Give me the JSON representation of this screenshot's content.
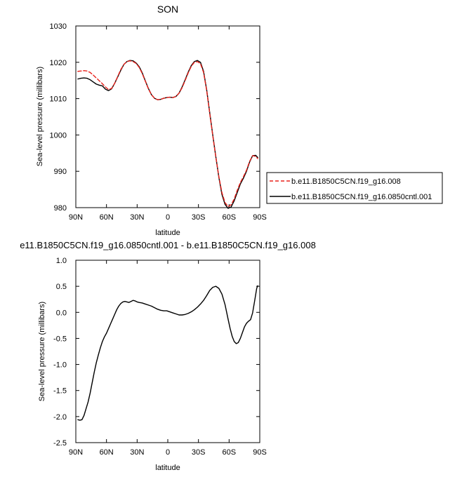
{
  "figure": {
    "top_title": "SON",
    "bottom_title": "e11.B1850C5CN.f19_g16.0850cntl.001 - b.e11.B1850C5CN.f19_g16.008"
  },
  "chart_data": [
    {
      "type": "line",
      "title": "SON",
      "xlabel": "latitude",
      "ylabel": "Sea-level pressure (millibars)",
      "xlim": [
        90,
        -90
      ],
      "ylim": [
        980,
        1030
      ],
      "xticks": [
        90,
        60,
        30,
        0,
        -30,
        -60,
        -90
      ],
      "xtick_labels": [
        "90N",
        "60N",
        "30N",
        "0",
        "30S",
        "60S",
        "90S"
      ],
      "yticks": [
        980,
        990,
        1000,
        1010,
        1020,
        1030
      ],
      "ytick_labels": [
        "980",
        "990",
        "1000",
        "1010",
        "1020",
        "1030"
      ],
      "legend_position": "right",
      "series": [
        {
          "name": "b.e11.B1850C5CN.f19_g16.008",
          "color": "#e8221c",
          "dash": "dashed",
          "x": [
            88,
            85,
            82,
            79,
            76,
            73,
            70,
            67,
            64,
            61,
            58,
            55,
            52,
            49,
            46,
            43,
            40,
            37,
            34,
            31,
            28,
            25,
            22,
            19,
            16,
            13,
            10,
            7,
            4,
            1,
            -2,
            -5,
            -8,
            -11,
            -14,
            -17,
            -20,
            -23,
            -26,
            -29,
            -32,
            -35,
            -38,
            -41,
            -44,
            -47,
            -50,
            -53,
            -56,
            -59,
            -62,
            -65,
            -68,
            -71,
            -74,
            -77,
            -80,
            -83,
            -86,
            -88
          ],
          "y": [
            1017.5,
            1017.6,
            1017.7,
            1017.6,
            1017.2,
            1016.5,
            1015.7,
            1014.9,
            1014.1,
            1013.2,
            1012.5,
            1012.8,
            1014.2,
            1016.1,
            1018.0,
            1019.4,
            1020.2,
            1020.4,
            1020.2,
            1019.7,
            1018.6,
            1016.9,
            1014.8,
            1012.7,
            1011.1,
            1010.1,
            1009.7,
            1009.8,
            1010.1,
            1010.3,
            1010.4,
            1010.3,
            1010.6,
            1011.5,
            1013.0,
            1015.0,
            1017.1,
            1018.9,
            1020.0,
            1020.2,
            1019.6,
            1017.2,
            1012.3,
            1006.0,
            999.8,
            993.9,
            988.5,
            984.1,
            981.4,
            980.3,
            980.8,
            982.4,
            984.8,
            986.9,
            988.5,
            990.3,
            992.7,
            994.3,
            994.1,
            993.5
          ]
        },
        {
          "name": "b.e11.B1850C5CN.f19_g16.0850cntl.001",
          "color": "#000000",
          "dash": "solid",
          "x": [
            88,
            85,
            82,
            79,
            76,
            73,
            70,
            67,
            64,
            61,
            58,
            55,
            52,
            49,
            46,
            43,
            40,
            37,
            34,
            31,
            28,
            25,
            22,
            19,
            16,
            13,
            10,
            7,
            4,
            1,
            -2,
            -5,
            -8,
            -11,
            -14,
            -17,
            -20,
            -23,
            -26,
            -29,
            -32,
            -35,
            -38,
            -41,
            -44,
            -47,
            -50,
            -53,
            -56,
            -59,
            -62,
            -65,
            -68,
            -71,
            -74,
            -77,
            -80,
            -83,
            -86,
            -88
          ],
          "y": [
            1015.4,
            1015.6,
            1015.7,
            1015.6,
            1015.2,
            1014.6,
            1014.0,
            1013.7,
            1013.5,
            1012.6,
            1012.2,
            1012.7,
            1014.2,
            1016.0,
            1017.8,
            1019.4,
            1020.2,
            1020.5,
            1020.4,
            1019.8,
            1018.8,
            1017.1,
            1014.9,
            1012.8,
            1011.1,
            1010.1,
            1009.7,
            1009.8,
            1010.1,
            1010.3,
            1010.4,
            1010.3,
            1010.6,
            1011.5,
            1013.2,
            1015.2,
            1017.3,
            1019.1,
            1020.2,
            1020.5,
            1020.0,
            1017.5,
            1012.5,
            1006.2,
            1000.0,
            994.0,
            988.3,
            983.6,
            980.9,
            979.8,
            980.2,
            981.9,
            984.2,
            986.5,
            988.1,
            990.0,
            992.5,
            994.3,
            994.4,
            993.8
          ]
        }
      ]
    },
    {
      "type": "line",
      "title": "e11.B1850C5CN.f19_g16.0850cntl.001 - b.e11.B1850C5CN.f19_g16.008",
      "xlabel": "latitude",
      "ylabel": "Sea-level pressure (millibars)",
      "xlim": [
        90,
        -90
      ],
      "ylim": [
        -2.5,
        1.0
      ],
      "xticks": [
        90,
        60,
        30,
        0,
        -30,
        -60,
        -90
      ],
      "xtick_labels": [
        "90N",
        "60N",
        "30N",
        "0",
        "30S",
        "60S",
        "90S"
      ],
      "yticks": [
        -2.5,
        -2.0,
        -1.5,
        -1.0,
        -0.5,
        0.0,
        0.5,
        1.0
      ],
      "ytick_labels": [
        "-2.5",
        "-2.0",
        "-1.5",
        "-1.0",
        "-0.5",
        "0.0",
        "0.5",
        "1.0"
      ],
      "series": [
        {
          "color": "#000000",
          "dash": "solid",
          "x": [
            88,
            86,
            84,
            82,
            80,
            78,
            76,
            74,
            72,
            70,
            68,
            66,
            64,
            62,
            60,
            58,
            56,
            54,
            52,
            50,
            48,
            46,
            44,
            42,
            40,
            38,
            36,
            34,
            32,
            30,
            28,
            25,
            22,
            19,
            16,
            13,
            10,
            7,
            4,
            1,
            -2,
            -5,
            -8,
            -11,
            -14,
            -17,
            -20,
            -23,
            -26,
            -29,
            -32,
            -35,
            -38,
            -41,
            -44,
            -47,
            -50,
            -53,
            -56,
            -59,
            -61,
            -63,
            -65,
            -67,
            -69,
            -71,
            -73,
            -75,
            -77,
            -79,
            -81,
            -83,
            -85,
            -87,
            -88
          ],
          "y": [
            -2.06,
            -2.07,
            -2.06,
            -1.98,
            -1.85,
            -1.72,
            -1.55,
            -1.35,
            -1.15,
            -0.97,
            -0.82,
            -0.68,
            -0.56,
            -0.47,
            -0.4,
            -0.31,
            -0.22,
            -0.13,
            -0.04,
            0.05,
            0.12,
            0.17,
            0.2,
            0.21,
            0.2,
            0.19,
            0.21,
            0.23,
            0.22,
            0.2,
            0.19,
            0.18,
            0.16,
            0.14,
            0.12,
            0.09,
            0.06,
            0.04,
            0.03,
            0.03,
            0.01,
            -0.01,
            -0.03,
            -0.05,
            -0.05,
            -0.04,
            -0.02,
            0.01,
            0.05,
            0.1,
            0.16,
            0.23,
            0.32,
            0.42,
            0.48,
            0.5,
            0.46,
            0.35,
            0.15,
            -0.13,
            -0.31,
            -0.46,
            -0.56,
            -0.6,
            -0.58,
            -0.5,
            -0.39,
            -0.28,
            -0.21,
            -0.17,
            -0.14,
            -0.01,
            0.22,
            0.46,
            0.51
          ]
        }
      ]
    }
  ]
}
